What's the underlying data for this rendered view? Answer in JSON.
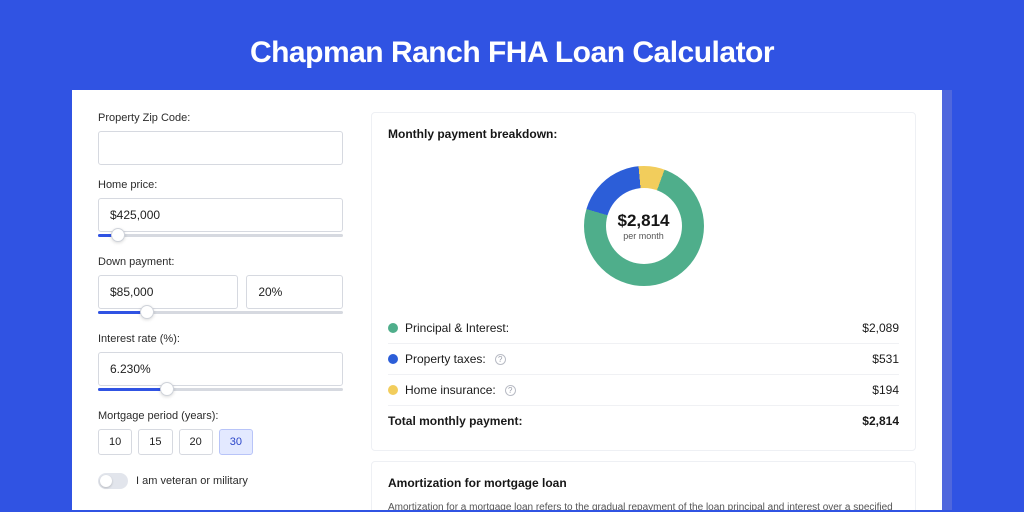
{
  "page": {
    "background": "#3053e3",
    "title": "Chapman Ranch FHA Loan Calculator"
  },
  "form": {
    "zip": {
      "label": "Property Zip Code:",
      "value": ""
    },
    "price": {
      "label": "Home price:",
      "value": "$425,000",
      "slider_pct": 8
    },
    "down": {
      "label": "Down payment:",
      "amount": "$85,000",
      "pct": "20%",
      "slider_pct": 20
    },
    "rate": {
      "label": "Interest rate (%):",
      "value": "6.230%",
      "slider_pct": 28
    },
    "period": {
      "label": "Mortgage period (years):",
      "options": [
        "10",
        "15",
        "20",
        "30"
      ],
      "active": "30"
    },
    "veteran": {
      "label": "I am veteran or military",
      "on": false
    }
  },
  "breakdown": {
    "title": "Monthly payment breakdown:",
    "donut": {
      "amount": "$2,814",
      "sub": "per month",
      "slices": [
        {
          "label": "Principal & Interest:",
          "value": "$2,089",
          "color": "#4fae8b",
          "pct": 74,
          "has_info": false
        },
        {
          "label": "Property taxes:",
          "value": "$531",
          "color": "#2c5ed8",
          "pct": 19,
          "has_info": true
        },
        {
          "label": "Home insurance:",
          "value": "$194",
          "color": "#f2cd5c",
          "pct": 7,
          "has_info": true
        }
      ]
    },
    "total": {
      "label": "Total monthly payment:",
      "value": "$2,814"
    }
  },
  "amortization": {
    "title": "Amortization for mortgage loan",
    "text": "Amortization for a mortgage loan refers to the gradual repayment of the loan principal and interest over a specified"
  }
}
